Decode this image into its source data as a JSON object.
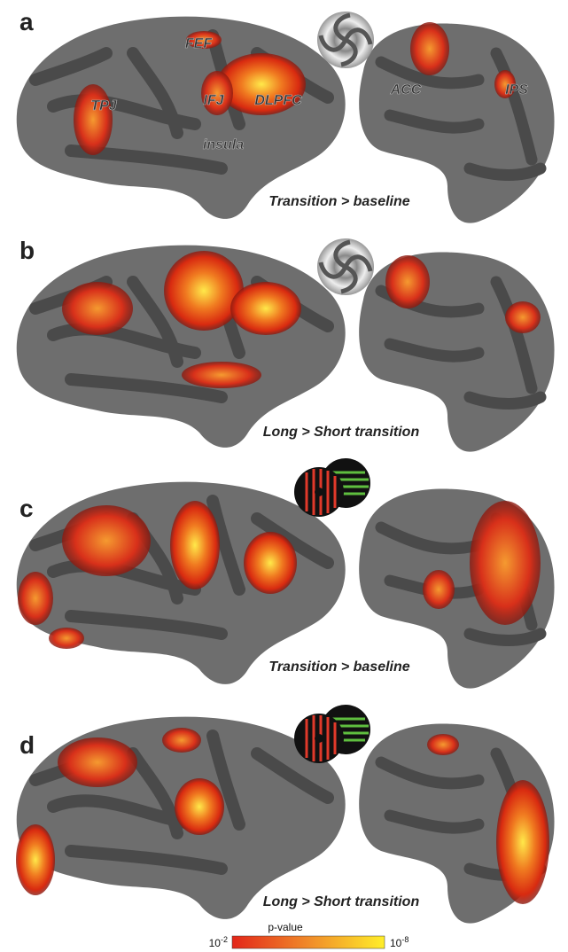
{
  "panels": [
    {
      "label": "a",
      "caption": "Transition > baseline",
      "regions": [
        "TPJ",
        "FEF",
        "IFJ",
        "DLPFC",
        "insula",
        "ACC",
        "IPS"
      ]
    },
    {
      "label": "b",
      "caption": "Long > Short transition"
    },
    {
      "label": "c",
      "caption": "Transition > baseline"
    },
    {
      "label": "d",
      "caption": "Long > Short transition"
    }
  ],
  "colorbar": {
    "title": "p-value",
    "min": {
      "base": "10",
      "exp": "-2"
    },
    "max": {
      "base": "10",
      "exp": "-8"
    }
  }
}
